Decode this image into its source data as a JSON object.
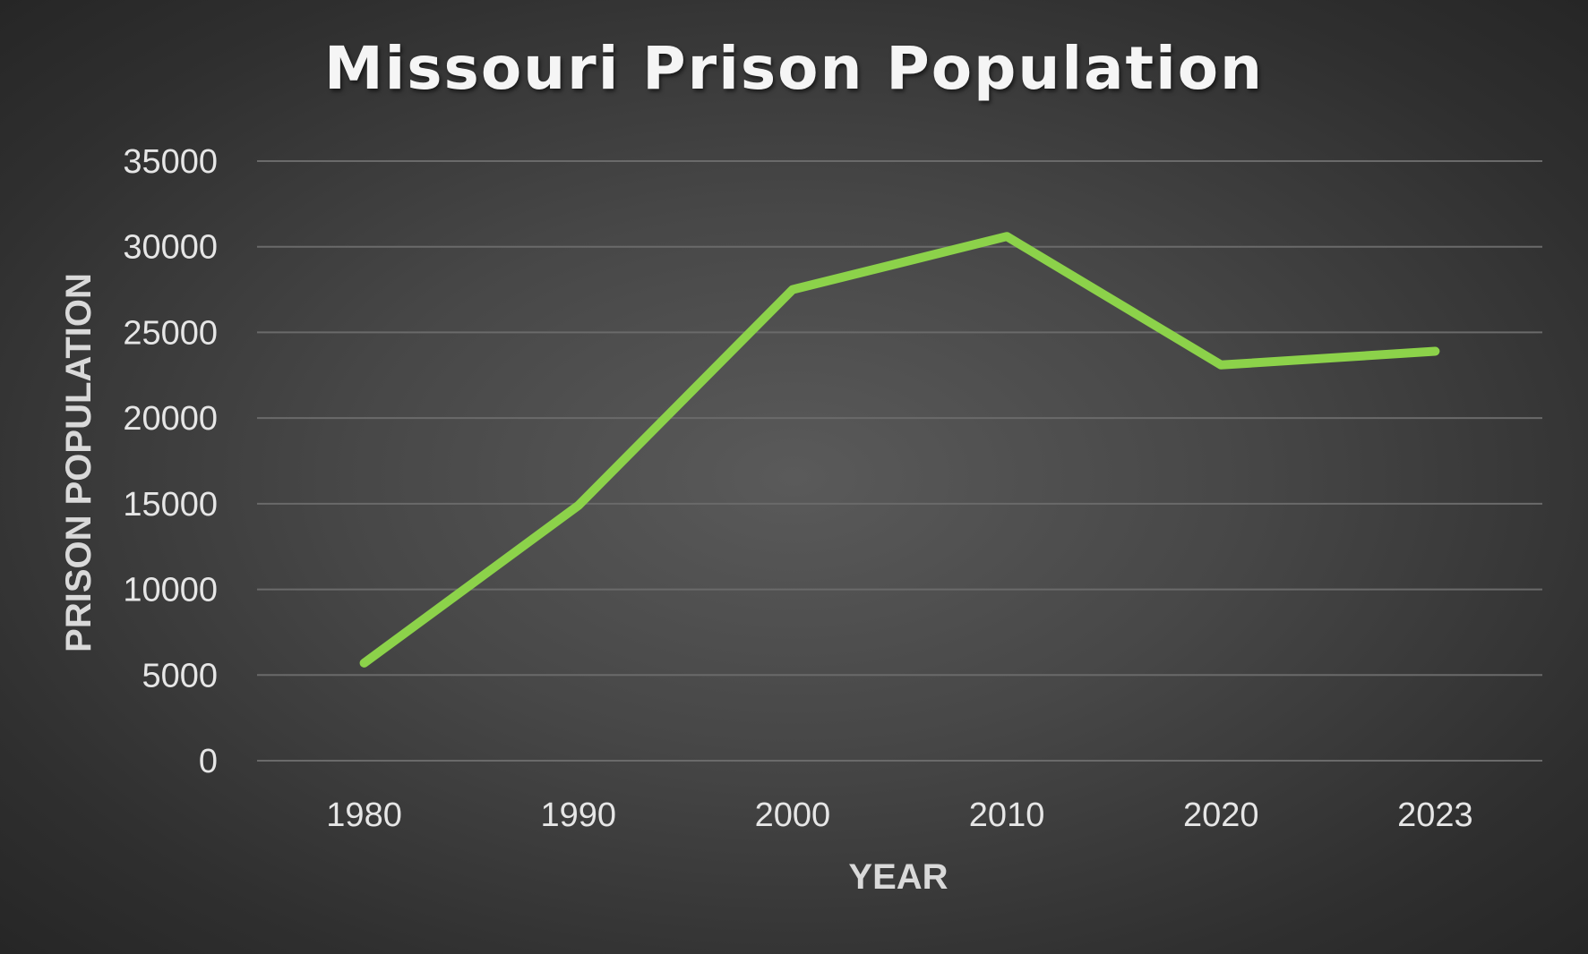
{
  "chart_data": {
    "type": "line",
    "title": "Missouri Prison Population",
    "xlabel": "YEAR",
    "ylabel": "PRISON POPULATION",
    "categories": [
      "1980",
      "1990",
      "2000",
      "2010",
      "2020",
      "2023"
    ],
    "series": [
      {
        "values": [
          5700,
          14900,
          27500,
          30600,
          23100,
          23900
        ]
      }
    ],
    "ylim": [
      0,
      35000
    ],
    "yticks": [
      "0",
      "5000",
      "10000",
      "15000",
      "20000",
      "25000",
      "30000",
      "35000"
    ],
    "grid": true,
    "legend": "none",
    "colors": {
      "line": "#8cd24a",
      "grid": "#6a6a6a",
      "text": "#e6e6e6"
    }
  }
}
